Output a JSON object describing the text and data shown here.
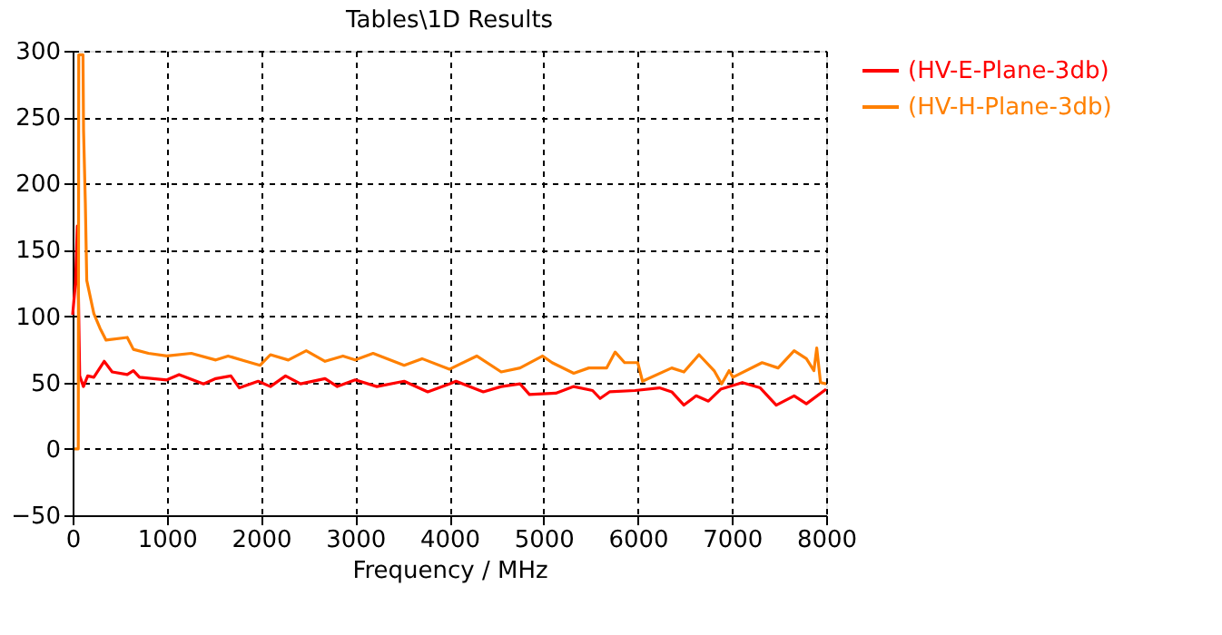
{
  "chart_data": {
    "type": "line",
    "title": "Tables\\1D Results",
    "xlabel": "Frequency / MHz",
    "xlim": [
      0,
      8000
    ],
    "xticks": [
      0,
      1000,
      2000,
      3000,
      4000,
      5000,
      6000,
      7000,
      8000
    ],
    "ylim": [
      -50,
      300
    ],
    "yticks": [
      -50,
      0,
      50,
      100,
      150,
      200,
      250,
      300
    ],
    "grid": true,
    "legend": "top right",
    "marker": "none",
    "line_style": "solid",
    "series": [
      {
        "name": "(HV-E-Plane-3db)",
        "color": "#ff0000",
        "x": [
          0,
          30,
          50,
          75,
          115,
          160,
          225,
          335,
          420,
          580,
          645,
          710,
          1000,
          1130,
          1390,
          1520,
          1680,
          1770,
          1970,
          2100,
          2260,
          2420,
          2680,
          2810,
          3000,
          3230,
          3520,
          3770,
          4000,
          4070,
          4360,
          4550,
          4750,
          4850,
          5130,
          5320,
          5520,
          5600,
          5700,
          5970,
          6230,
          6360,
          6490,
          6620,
          6750,
          6880,
          7110,
          7300,
          7470,
          7660,
          7790,
          8000
        ],
        "values": [
          101,
          125,
          168,
          55,
          47,
          55,
          54,
          66,
          58,
          56,
          59,
          54,
          52,
          56,
          49,
          53,
          55,
          46,
          51,
          47,
          55,
          49,
          53,
          47,
          52,
          47,
          51,
          43,
          49,
          51,
          43,
          47,
          49,
          41,
          42,
          47,
          44,
          38,
          43,
          44,
          46,
          43,
          33,
          40,
          36,
          45,
          50,
          46,
          33,
          40,
          34,
          45
        ]
      },
      {
        "name": "(HV-H-Plane-3db)",
        "color": "#ff8000",
        "x": [
          20,
          60,
          65,
          110,
          116,
          135,
          150,
          225,
          290,
          355,
          580,
          645,
          805,
          1000,
          1260,
          1520,
          1650,
          1840,
          1990,
          2100,
          2290,
          2480,
          2680,
          2870,
          3000,
          3190,
          3520,
          3710,
          4000,
          4290,
          4550,
          4750,
          4990,
          5090,
          5320,
          5480,
          5670,
          5760,
          5860,
          6000,
          6050,
          6360,
          6490,
          6650,
          6810,
          6890,
          6970,
          7010,
          7320,
          7490,
          7660,
          7790,
          7870,
          7900,
          7940,
          8000
        ],
        "values": [
          0,
          0,
          297,
          297,
          240,
          185,
          127,
          102,
          91,
          82,
          84,
          75,
          72,
          70,
          72,
          67,
          70,
          66,
          63,
          71,
          67,
          74,
          66,
          70,
          67,
          72,
          63,
          68,
          60,
          70,
          58,
          61,
          70,
          65,
          57,
          61,
          61,
          73,
          65,
          65,
          51,
          61,
          58,
          71,
          59,
          49,
          59,
          54,
          65,
          61,
          74,
          68,
          59,
          76,
          50,
          49
        ]
      }
    ]
  }
}
